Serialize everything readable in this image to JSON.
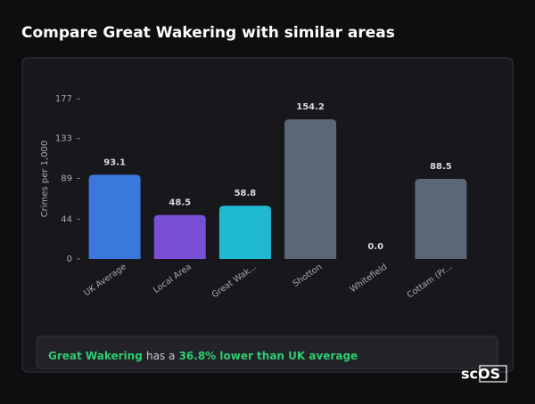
{
  "header": {
    "title": "Compare Great Wakering with similar areas"
  },
  "chart_data": {
    "type": "bar",
    "y_label": "Crimes per 1,000",
    "categories": [
      "UK Average",
      "Local Area",
      "Great Wak...",
      "Shotton",
      "Whitefield",
      "Cottam (Pr..."
    ],
    "values": [
      93.1,
      48.5,
      58.8,
      154.2,
      0,
      88.5
    ],
    "value_labels": [
      "93.1",
      "48.5",
      "58.8",
      "154.2",
      "0.0",
      "88.5"
    ],
    "colors": [
      "#3b78de",
      "#7a4fd8",
      "#20b9d2",
      "#5b6678",
      "#5b6678",
      "#5b6678"
    ],
    "ylim": [
      0,
      177
    ],
    "yticks": [
      0,
      44,
      89,
      133,
      177
    ]
  },
  "summary": {
    "area": "Great Wakering",
    "middle": "has a",
    "comparison": "36.8% lower than UK average"
  },
  "logo": {
    "text": "scOS"
  }
}
